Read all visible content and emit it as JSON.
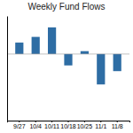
{
  "chart_data": {
    "type": "bar",
    "title": "Weekly Fund Flows",
    "categories": [
      "9/27",
      "10/4",
      "10/11",
      "10/18",
      "10/25",
      "11/1",
      "11/8"
    ],
    "values": [
      1.2,
      1.8,
      2.8,
      -1.2,
      0.3,
      -3.2,
      -1.8
    ],
    "color": "#2e6da4",
    "ylim": [
      -7,
      4
    ],
    "grid": false,
    "tick_labels": "x"
  }
}
